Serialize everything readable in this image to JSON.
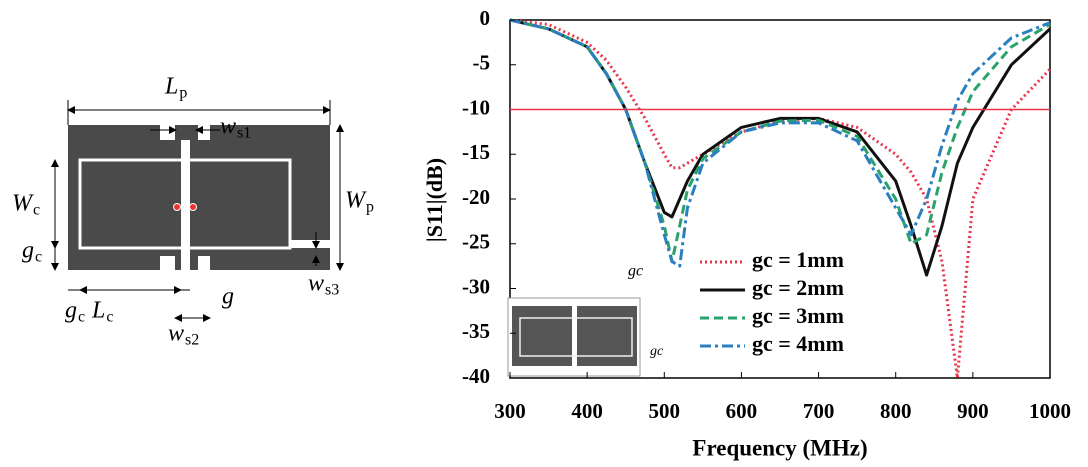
{
  "chart_data": {
    "type": "line",
    "x_label": "Frequency (MHz)",
    "y_label": "|S11|(dB)",
    "x": [
      300,
      350,
      400,
      425,
      450,
      475,
      500,
      510,
      520,
      530,
      550,
      600,
      650,
      700,
      750,
      800,
      820,
      840,
      860,
      880,
      900,
      950,
      1000
    ],
    "series": [
      {
        "name": "gc = 1mm",
        "color": "#e8334a",
        "dash": "dotted",
        "values": [
          0,
          -0.5,
          -2.5,
          -4.5,
          -7.5,
          -11,
          -15,
          -16.5,
          -16.5,
          -16,
          -15,
          -12.5,
          -11.3,
          -11,
          -12,
          -15,
          -17,
          -20,
          -27,
          -40,
          -20,
          -10,
          -5.5
        ]
      },
      {
        "name": "gc = 2mm",
        "color": "#111111",
        "dash": "solid",
        "values": [
          0,
          -1,
          -3,
          -6,
          -10,
          -16,
          -21.5,
          -22,
          -20,
          -18,
          -15,
          -12,
          -11,
          -11,
          -12.5,
          -18,
          -23,
          -28.5,
          -23,
          -16,
          -12,
          -5,
          -1
        ]
      },
      {
        "name": "gc = 3mm",
        "color": "#2aa36b",
        "dash": "dashed",
        "values": [
          0,
          -1,
          -3,
          -6,
          -10,
          -16,
          -23,
          -27,
          -23,
          -19,
          -15.5,
          -12.5,
          -11.3,
          -11.2,
          -13,
          -20,
          -25,
          -24,
          -17,
          -12,
          -8,
          -3,
          -0.5
        ]
      },
      {
        "name": "gc = 4mm",
        "color": "#2a7fc1",
        "dash": "dashdot",
        "values": [
          0,
          -1,
          -3,
          -6,
          -10,
          -16,
          -24,
          -27,
          -27.5,
          -21,
          -16,
          -12.5,
          -11.5,
          -11.5,
          -13.5,
          -21,
          -24,
          -20,
          -14,
          -9,
          -6,
          -2,
          -0.3
        ]
      }
    ],
    "reference_line": {
      "value": -10,
      "color": "#e8334a"
    },
    "xlim": [
      300,
      1000
    ],
    "xticks": [
      300,
      400,
      500,
      600,
      700,
      800,
      900,
      1000
    ],
    "ylim": [
      -40,
      0
    ],
    "yticks": [
      0,
      -5,
      -10,
      -15,
      -20,
      -25,
      -30,
      -35,
      -40
    ],
    "grid": false,
    "inset_labels": [
      "gc",
      "gc"
    ]
  },
  "diagram": {
    "labels": [
      {
        "main": "L",
        "sub": "p"
      },
      {
        "main": "w",
        "sub": "s1"
      },
      {
        "main": "W",
        "sub": "c"
      },
      {
        "main": "W",
        "sub": "p"
      },
      {
        "main": "g",
        "sub": "c"
      },
      {
        "main": "w",
        "sub": "s3"
      },
      {
        "main": "g",
        "sub": "c"
      },
      {
        "main": "L",
        "sub": "c"
      },
      {
        "main": "g",
        "sub": ""
      },
      {
        "main": "w",
        "sub": "s2"
      }
    ]
  }
}
